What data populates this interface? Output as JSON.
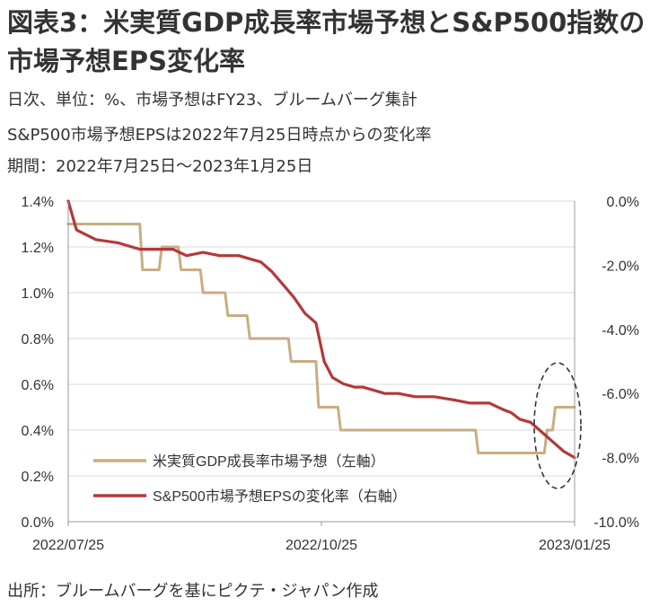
{
  "title": "図表3：米実質GDP成長率市場予想とS&P500指数の市場予想EPS変化率",
  "subtitle_lines": [
    "日次、単位：%、市場予想はFY23、ブルームバーグ集計",
    "S&P500市場予想EPSは2022年7月25日時点からの変化率",
    "期間：2022年7月25日～2023年1月25日"
  ],
  "source": "出所：ブルームバーグを基にピクテ・ジャパン作成",
  "chart_data": {
    "type": "line",
    "title": "",
    "xlabel": "",
    "ylabel_left": "",
    "ylabel_right": "",
    "x_tick_labels": [
      "2022/07/25",
      "2022/10/25",
      "2023/01/25"
    ],
    "x_tick_dates": [
      "2022-07-25",
      "2022-10-25",
      "2023-01-25"
    ],
    "x_range": [
      "2022-07-25",
      "2023-01-25"
    ],
    "y_left": {
      "min": 0.0,
      "max": 1.4,
      "ticks": [
        "0.0%",
        "0.2%",
        "0.4%",
        "0.6%",
        "0.8%",
        "1.0%",
        "1.2%",
        "1.4%"
      ],
      "tick_values": [
        0,
        0.2,
        0.4,
        0.6,
        0.8,
        1.0,
        1.2,
        1.4
      ]
    },
    "y_right": {
      "min": -10.0,
      "max": 0.0,
      "ticks": [
        "-10.0%",
        "-8.0%",
        "-6.0%",
        "-4.0%",
        "-2.0%",
        "0.0%"
      ],
      "tick_values": [
        -10,
        -8,
        -6,
        -4,
        -2,
        0
      ]
    },
    "grid": true,
    "legend_position": "bottom-left",
    "annotation": "dashed ellipse highlighting latest values",
    "series": [
      {
        "name": "米実質GDP成長率市場予想（左軸）",
        "axis": "left",
        "color": "#c8ad82",
        "step": true,
        "points": [
          [
            "2022-07-25",
            1.3
          ],
          [
            "2022-08-20",
            1.3
          ],
          [
            "2022-08-21",
            1.1
          ],
          [
            "2022-08-27",
            1.1
          ],
          [
            "2022-08-28",
            1.2
          ],
          [
            "2022-09-03",
            1.2
          ],
          [
            "2022-09-04",
            1.1
          ],
          [
            "2022-09-11",
            1.1
          ],
          [
            "2022-09-12",
            1.0
          ],
          [
            "2022-09-20",
            1.0
          ],
          [
            "2022-09-21",
            0.9
          ],
          [
            "2022-09-28",
            0.9
          ],
          [
            "2022-09-29",
            0.8
          ],
          [
            "2022-10-13",
            0.8
          ],
          [
            "2022-10-14",
            0.7
          ],
          [
            "2022-10-23",
            0.7
          ],
          [
            "2022-10-24",
            0.5
          ],
          [
            "2022-10-31",
            0.5
          ],
          [
            "2022-11-01",
            0.4
          ],
          [
            "2022-12-20",
            0.4
          ],
          [
            "2022-12-21",
            0.3
          ],
          [
            "2023-01-14",
            0.3
          ],
          [
            "2023-01-15",
            0.4
          ],
          [
            "2023-01-17",
            0.4
          ],
          [
            "2023-01-18",
            0.5
          ],
          [
            "2023-01-25",
            0.5
          ]
        ]
      },
      {
        "name": "S&P500市場予想EPSの変化率（右軸）",
        "axis": "right",
        "color": "#b5383a",
        "step": false,
        "points": [
          [
            "2022-07-25",
            0.0
          ],
          [
            "2022-07-28",
            -0.9
          ],
          [
            "2022-08-04",
            -1.2
          ],
          [
            "2022-08-12",
            -1.3
          ],
          [
            "2022-08-20",
            -1.5
          ],
          [
            "2022-09-01",
            -1.5
          ],
          [
            "2022-09-06",
            -1.7
          ],
          [
            "2022-09-12",
            -1.6
          ],
          [
            "2022-09-18",
            -1.7
          ],
          [
            "2022-09-25",
            -1.7
          ],
          [
            "2022-09-29",
            -1.8
          ],
          [
            "2022-10-03",
            -1.9
          ],
          [
            "2022-10-07",
            -2.2
          ],
          [
            "2022-10-11",
            -2.6
          ],
          [
            "2022-10-15",
            -3.0
          ],
          [
            "2022-10-19",
            -3.5
          ],
          [
            "2022-10-23",
            -3.8
          ],
          [
            "2022-10-26",
            -5.0
          ],
          [
            "2022-10-29",
            -5.5
          ],
          [
            "2022-11-02",
            -5.7
          ],
          [
            "2022-11-06",
            -5.8
          ],
          [
            "2022-11-09",
            -5.8
          ],
          [
            "2022-11-13",
            -5.9
          ],
          [
            "2022-11-17",
            -6.0
          ],
          [
            "2022-11-22",
            -6.0
          ],
          [
            "2022-11-28",
            -6.1
          ],
          [
            "2022-12-05",
            -6.1
          ],
          [
            "2022-12-12",
            -6.2
          ],
          [
            "2022-12-18",
            -6.3
          ],
          [
            "2022-12-25",
            -6.3
          ],
          [
            "2022-12-30",
            -6.5
          ],
          [
            "2023-01-02",
            -6.6
          ],
          [
            "2023-01-05",
            -6.8
          ],
          [
            "2023-01-09",
            -6.9
          ],
          [
            "2023-01-13",
            -7.2
          ],
          [
            "2023-01-17",
            -7.5
          ],
          [
            "2023-01-21",
            -7.8
          ],
          [
            "2023-01-25",
            -8.0
          ]
        ]
      }
    ]
  }
}
